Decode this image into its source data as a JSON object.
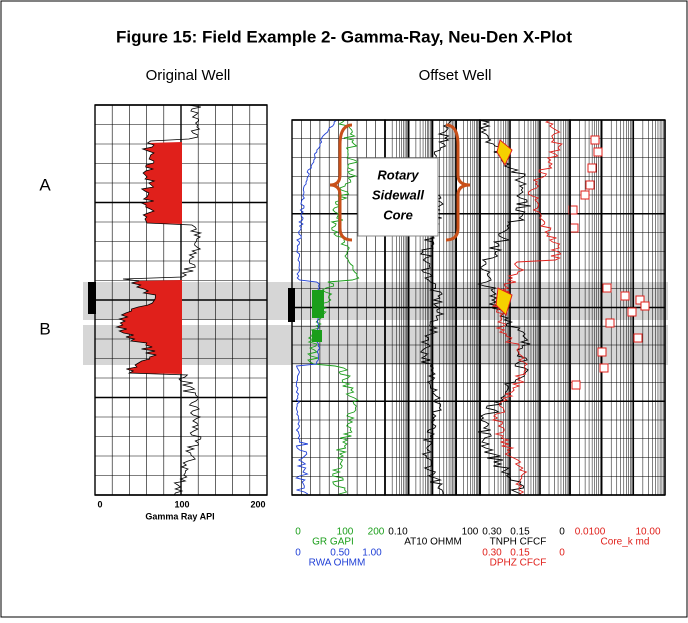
{
  "title": "Figure 15: Field Example 2- Gamma-Ray, Neu-Den X-Plot",
  "panels": {
    "original": "Original Well",
    "offset": "Offset Well"
  },
  "zones": [
    "A",
    "B"
  ],
  "annotation": [
    "Rotary",
    "Sidewall",
    "Core"
  ],
  "original_axis": {
    "ticks": [
      "0",
      "100",
      "200"
    ],
    "label": "Gamma Ray API"
  },
  "tracks": [
    {
      "scales": [
        {
          "ticks": [
            "0",
            "100",
            "200"
          ],
          "label": "GR GAPI",
          "color": "#1a9e1a"
        },
        {
          "ticks": [
            "0",
            "0.50",
            "1.00"
          ],
          "label": "RWA OHMM",
          "color": "#1f3fd6"
        }
      ]
    },
    {
      "scales": [
        {
          "ticks": [
            "0.10",
            "100"
          ],
          "label": "AT10 OHMM",
          "color": "#000000"
        }
      ]
    },
    {
      "scales": [
        {
          "ticks": [
            "0.30",
            "0.15",
            "0"
          ],
          "label": "TNPH CFCF",
          "color": "#000000"
        },
        {
          "ticks": [
            "0.30",
            "0.15",
            "0"
          ],
          "label": "DPHZ CFCF",
          "color": "#e0201b"
        }
      ]
    },
    {
      "scales": [
        {
          "ticks": [
            "0.0100",
            "10.00"
          ],
          "label": "Core_k md",
          "color": "#e0201b"
        }
      ]
    }
  ]
}
